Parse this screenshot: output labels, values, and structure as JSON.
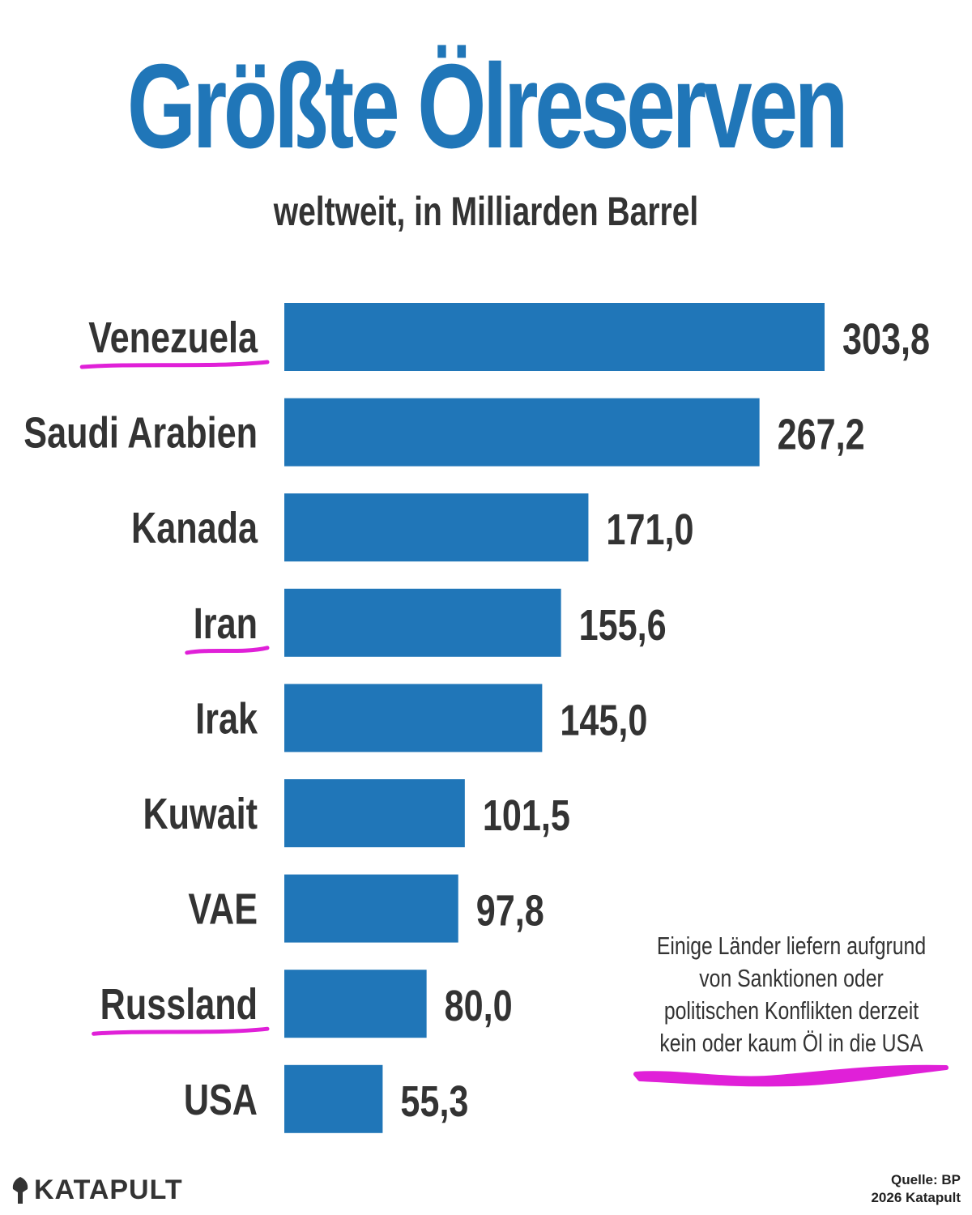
{
  "title": "Größte Ölreserven",
  "subtitle": "weltweit, in Milliarden Barrel",
  "colors": {
    "bar": "#2076b8",
    "highlight": "#e020d8",
    "text": "#333333"
  },
  "chart_data": {
    "type": "bar",
    "orientation": "horizontal",
    "title": "Größte Ölreserven",
    "subtitle": "weltweit, in Milliarden Barrel",
    "categories": [
      "Venezuela",
      "Saudi Arabien",
      "Kanada",
      "Iran",
      "Irak",
      "Kuwait",
      "VAE",
      "Russland",
      "USA"
    ],
    "values": [
      303.8,
      267.2,
      171.0,
      155.6,
      145.0,
      101.5,
      97.8,
      80.0,
      55.3
    ],
    "value_labels": [
      "303,8",
      "267,2",
      "171,0",
      "155,6",
      "145,0",
      "101,5",
      "97,8",
      "80,0",
      "55,3"
    ],
    "highlighted": [
      "Venezuela",
      "Iran",
      "Russland"
    ],
    "xlim": [
      0,
      303.8
    ],
    "grid": false,
    "legend": "none"
  },
  "note": "Einige Länder liefern aufgrund von Sanktionen oder politischen Konflikten derzeit kein oder kaum Öl in die USA",
  "logo": {
    "text": "KATAPULT",
    "icon": "shovel-icon"
  },
  "source": {
    "line1": "Quelle: BP",
    "line2": "2026 Katapult"
  }
}
